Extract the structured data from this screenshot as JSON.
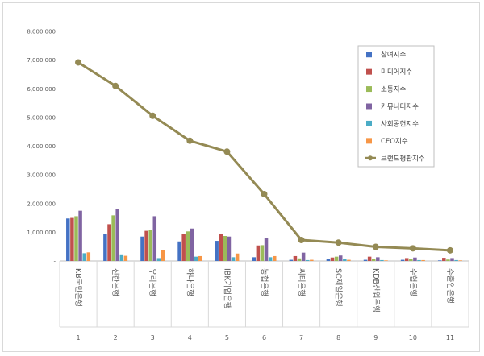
{
  "chart_data": {
    "type": "bar",
    "title": "",
    "xlabel": "",
    "ylabel": "",
    "ylim": [
      0,
      8000000
    ],
    "yticks": [
      "-",
      "1,000,000",
      "2,000,000",
      "3,000,000",
      "4,000,000",
      "5,000,000",
      "6,000,000",
      "7,000,000",
      "8,000,000"
    ],
    "grid": false,
    "legend_position": "top-right",
    "categories": [
      "KB국민은행",
      "신한은행",
      "우리은행",
      "하나은행",
      "IBK기업은행",
      "농협은행",
      "씨티은행",
      "SC제일은행",
      "KDB산업은행",
      "수협은행",
      "수출입은행"
    ],
    "ranks": [
      "1",
      "2",
      "3",
      "4",
      "5",
      "6",
      "7",
      "8",
      "9",
      "10",
      "11"
    ],
    "series": [
      {
        "name": "참여지수",
        "kind": "bar",
        "color": "#4472C4",
        "values": [
          1480000,
          950000,
          850000,
          680000,
          700000,
          130000,
          40000,
          70000,
          40000,
          40000,
          20000
        ]
      },
      {
        "name": "미디어지수",
        "kind": "bar",
        "color": "#C0504D",
        "values": [
          1500000,
          1280000,
          1050000,
          950000,
          930000,
          540000,
          170000,
          120000,
          150000,
          100000,
          110000
        ]
      },
      {
        "name": "소통지수",
        "kind": "bar",
        "color": "#9BBB59",
        "values": [
          1560000,
          1590000,
          1080000,
          1030000,
          870000,
          550000,
          90000,
          150000,
          60000,
          60000,
          50000
        ]
      },
      {
        "name": "커뮤니티지수",
        "kind": "bar",
        "color": "#8064A2",
        "values": [
          1750000,
          1800000,
          1560000,
          1130000,
          850000,
          800000,
          290000,
          190000,
          130000,
          120000,
          100000
        ]
      },
      {
        "name": "사회공헌지수",
        "kind": "bar",
        "color": "#4BACC6",
        "values": [
          270000,
          230000,
          100000,
          150000,
          130000,
          130000,
          30000,
          70000,
          30000,
          30000,
          30000
        ]
      },
      {
        "name": "CEO지수",
        "kind": "bar",
        "color": "#F79646",
        "values": [
          300000,
          180000,
          370000,
          170000,
          260000,
          170000,
          40000,
          40000,
          20000,
          30000,
          20000
        ]
      },
      {
        "name": "브랜드평판지수",
        "kind": "line",
        "color": "#948A54",
        "values": [
          6920000,
          6100000,
          5060000,
          4190000,
          3810000,
          2330000,
          730000,
          640000,
          490000,
          440000,
          370000
        ]
      }
    ]
  }
}
